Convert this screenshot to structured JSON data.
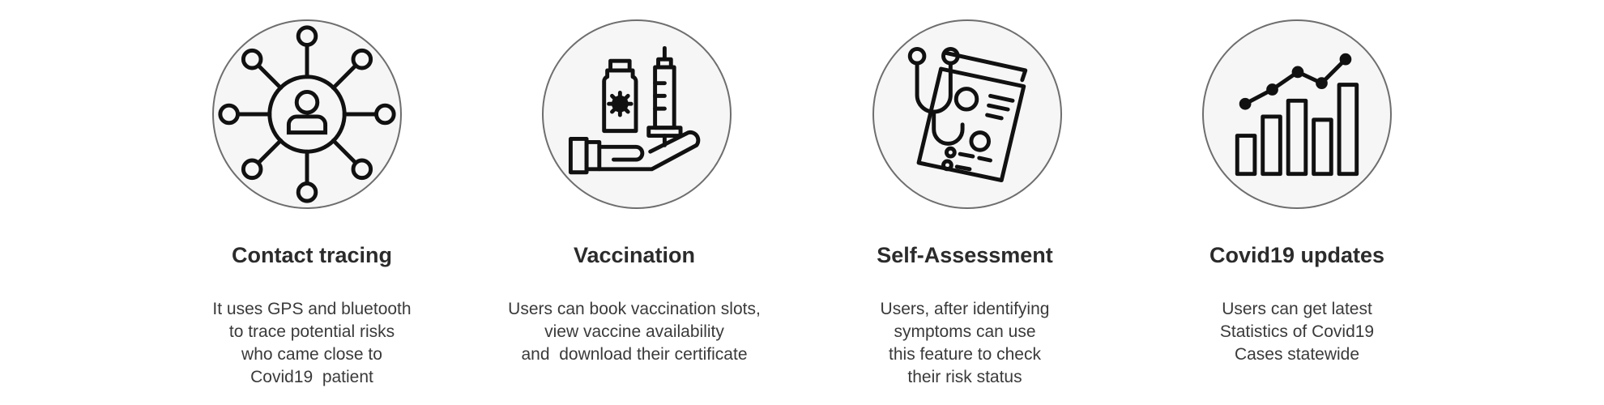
{
  "features": [
    {
      "title": "Contact tracing",
      "icon": "contact-network-icon",
      "lines": [
        "It uses GPS and bluetooth",
        "to trace potential risks",
        "who came close to",
        "Covid19  patient"
      ]
    },
    {
      "title": "Vaccination",
      "icon": "vaccine-hand-icon",
      "lines": [
        "Users can book vaccination slots,",
        "view vaccine availability",
        "and  download their certificate"
      ]
    },
    {
      "title": "Self-Assessment",
      "icon": "stethoscope-report-icon",
      "lines": [
        "Users, after identifying",
        "symptoms can use",
        "this feature to check",
        "their risk status"
      ]
    },
    {
      "title": "Covid19 updates",
      "icon": "bar-line-chart-icon",
      "lines": [
        "Users can get latest",
        "Statistics of Covid19",
        "Cases statewide"
      ]
    }
  ],
  "colors": {
    "circle_border": "#6e6e6e",
    "circle_fill": "#f6f6f6",
    "icon_stroke": "#111111",
    "text": "#333333"
  }
}
